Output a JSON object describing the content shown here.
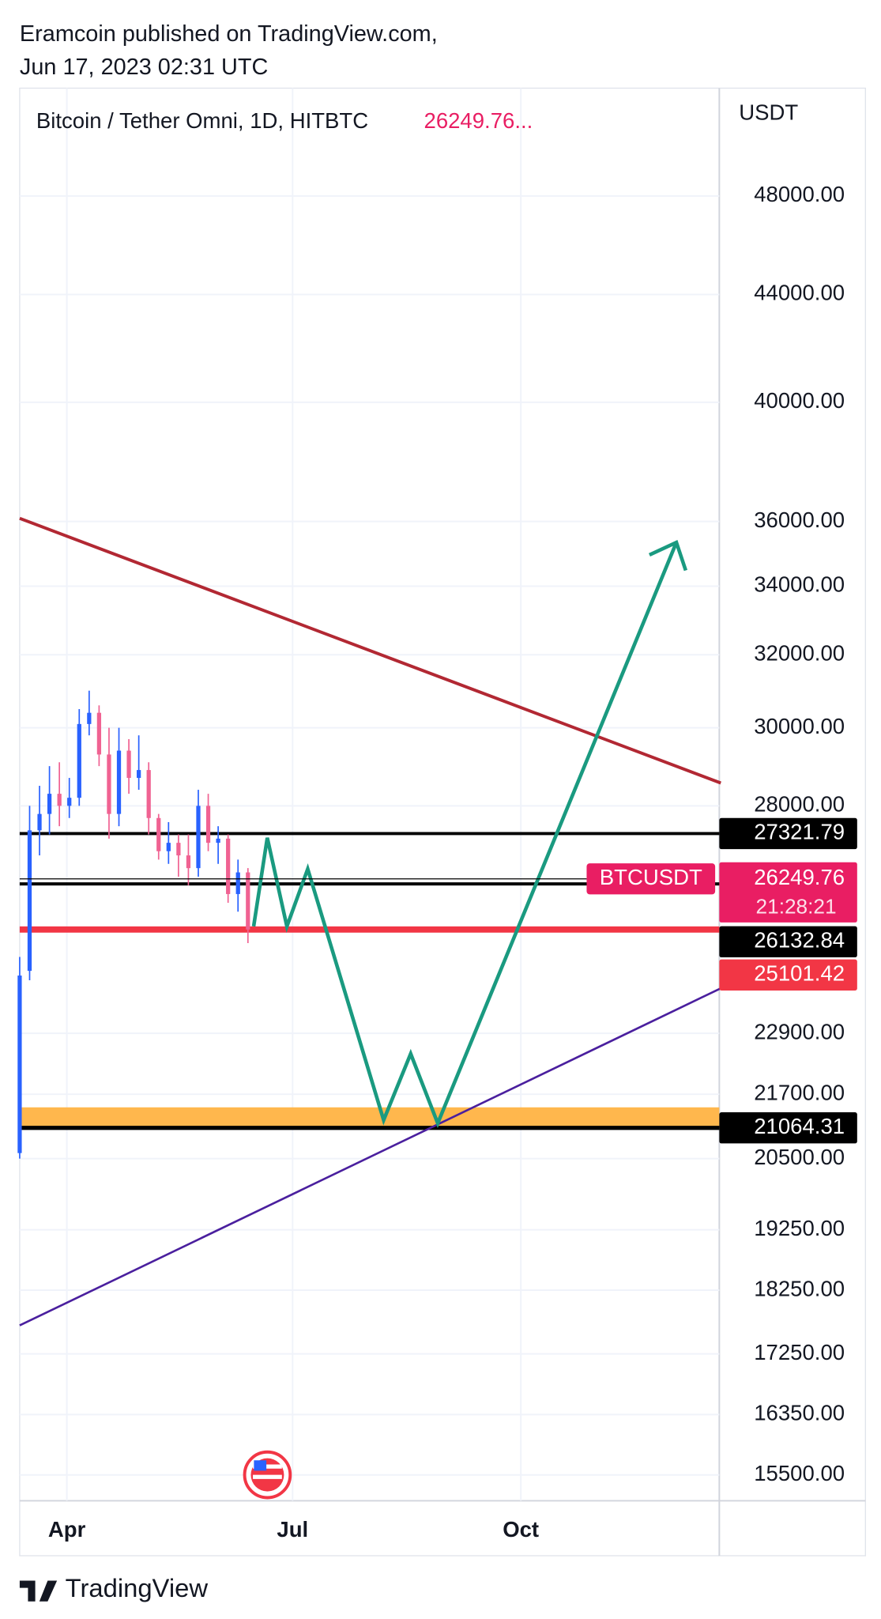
{
  "header": {
    "author_line": "Eramcoin published on TradingView.com,",
    "date_line": "Jun 17, 2023 02:31 UTC"
  },
  "footer": {
    "brand": "TradingView"
  },
  "chart_data": {
    "type": "candlestick",
    "title": "Bitcoin / Tether Omni, 1D, HITBTC",
    "last_label": "26249.76...",
    "ylabel": "USDT",
    "log_scale": true,
    "grid": true,
    "ylim": [
      15150,
      52800
    ],
    "yticks": [
      {
        "value": 48000,
        "label": "48000.00"
      },
      {
        "value": 44000,
        "label": "44000.00"
      },
      {
        "value": 40000,
        "label": "40000.00"
      },
      {
        "value": 36000,
        "label": "36000.00"
      },
      {
        "value": 34000,
        "label": "34000.00"
      },
      {
        "value": 32000,
        "label": "32000.00"
      },
      {
        "value": 30000,
        "label": "30000.00"
      },
      {
        "value": 28000,
        "label": "28000.00"
      },
      {
        "value": 22900,
        "label": "22900.00"
      },
      {
        "value": 21700,
        "label": "21700.00"
      },
      {
        "value": 20500,
        "label": "20500.00"
      },
      {
        "value": 19250,
        "label": "19250.00"
      },
      {
        "value": 18250,
        "label": "18250.00"
      },
      {
        "value": 17250,
        "label": "17250.00"
      },
      {
        "value": 16350,
        "label": "16350.00"
      },
      {
        "value": 15500,
        "label": "15500.00"
      }
    ],
    "xlim": [
      72,
      354
    ],
    "xticks": [
      {
        "value": 91,
        "label": "Apr"
      },
      {
        "value": 182,
        "label": "Jul"
      },
      {
        "value": 274,
        "label": "Oct"
      }
    ],
    "up_color": "#2962ff",
    "down_color": "#f06292",
    "x": [
      72,
      76,
      80,
      84,
      88,
      92,
      96,
      100,
      104,
      108,
      112,
      116,
      120,
      124,
      128,
      132,
      136,
      140,
      144,
      148,
      152,
      156,
      160,
      164
    ],
    "open": [
      20600,
      24200,
      27400,
      27800,
      28300,
      28000,
      28200,
      30100,
      30400,
      29300,
      27800,
      29400,
      28700,
      28900,
      27700,
      26900,
      27100,
      26800,
      26500,
      28000,
      27100,
      27200,
      25900,
      26400
    ],
    "high": [
      24500,
      28000,
      28500,
      29000,
      29100,
      28700,
      30500,
      31000,
      30600,
      30000,
      30000,
      29700,
      29800,
      29100,
      27800,
      27600,
      27300,
      27300,
      28400,
      28300,
      27500,
      27300,
      26700,
      26500
    ],
    "low": [
      20500,
      24000,
      26800,
      27300,
      27500,
      27700,
      28000,
      29800,
      29000,
      27200,
      27500,
      28300,
      28400,
      27300,
      26700,
      26600,
      26300,
      26100,
      26300,
      26900,
      26600,
      25700,
      25500,
      24800
    ],
    "close": [
      24100,
      27400,
      27800,
      28300,
      28000,
      28200,
      30100,
      30400,
      29300,
      27800,
      29400,
      28700,
      28900,
      27700,
      26900,
      27100,
      26800,
      26500,
      28000,
      27100,
      27200,
      25900,
      26400,
      25100
    ],
    "symbol": "BTCUSDT",
    "countdown": "21:28:21",
    "last_price": 26249.76,
    "last_color": "#e91e63",
    "levels": [
      {
        "value": 27321.79,
        "color": "#000000"
      },
      {
        "value": 26132.84,
        "color": "#000000"
      },
      {
        "value": 25101.42,
        "color": "#f23645"
      },
      {
        "value": 21064.31,
        "color": "#000000"
      }
    ],
    "zone": {
      "values": [
        21064.31,
        21450
      ],
      "color": "#ffb74d"
    },
    "trendlines": [
      {
        "color": "#b22833",
        "x": [
          72,
          354.6
        ],
        "y": [
          36100,
          28570
        ]
      },
      {
        "color": "#4a1f9e",
        "x": [
          72,
          354.6
        ],
        "y": [
          17690,
          23830
        ]
      }
    ],
    "projection": {
      "color": "#1a9a80",
      "x": [
        166.3,
        171.8,
        179.7,
        188.1,
        218.7,
        229.6,
        240.5,
        336.7
      ],
      "y": [
        25170,
        27220,
        25170,
        26480,
        21210,
        22490,
        21150,
        35340
      ]
    }
  }
}
